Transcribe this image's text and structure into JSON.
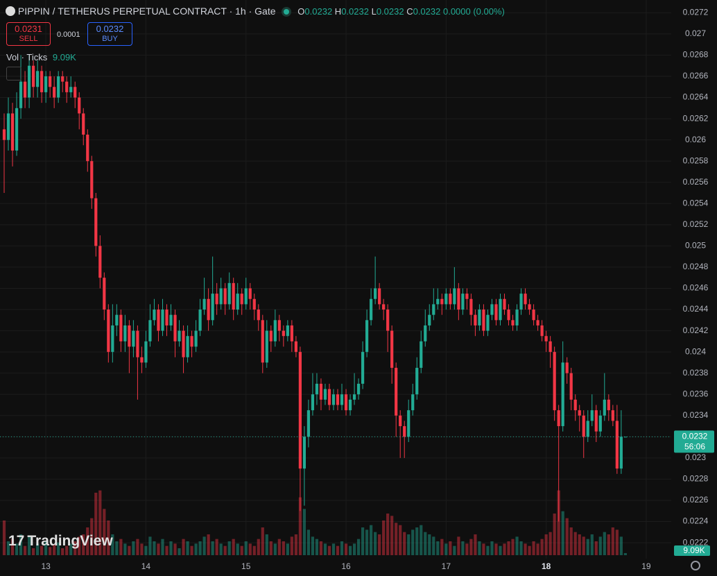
{
  "header": {
    "title": "PIPPIN / TETHERUS PERPETUAL CONTRACT · 1h · Gate",
    "o_label": "O",
    "o": "0.0232",
    "h_label": "H",
    "h": "0.0232",
    "l_label": "L",
    "l": "0.0232",
    "c_label": "C",
    "c": "0.0232",
    "change": "0.0000 (0.00%)",
    "sell_price": "0.0231",
    "sell": "SELL",
    "spread": "0.0001",
    "buy_price": "0.0232",
    "buy": "BUY",
    "volume_title": "Vol · Ticks",
    "countdown": "56:06",
    "brand": "TradingView"
  },
  "chart_data": {
    "type": "candlestick",
    "up_color": "#22ab94",
    "down_color": "#f23645",
    "grid": true,
    "ylim": [
      0.02205,
      0.02732
    ],
    "yticks": [
      0.0222,
      0.0224,
      0.0226,
      0.0228,
      0.023,
      0.0232,
      0.0234,
      0.0236,
      0.0238,
      0.024,
      0.0242,
      0.0244,
      0.0246,
      0.0248,
      0.025,
      0.0252,
      0.0254,
      0.0256,
      0.0258,
      0.026,
      0.0262,
      0.0264,
      0.0266,
      0.0268,
      0.027,
      0.0272
    ],
    "xlim": [
      -1,
      160
    ],
    "xticks": [
      {
        "value": 10,
        "label": "13"
      },
      {
        "value": 34,
        "label": "14"
      },
      {
        "value": 58,
        "label": "15"
      },
      {
        "value": 82,
        "label": "16"
      },
      {
        "value": 106,
        "label": "17"
      },
      {
        "value": 130,
        "label": "18"
      },
      {
        "value": 154,
        "label": "19"
      }
    ],
    "vlim": [
      0,
      300000
    ],
    "candles": [
      [
        0.0261,
        0.02625,
        0.0255,
        0.026
      ],
      [
        0.026,
        0.0264,
        0.0259,
        0.02625
      ],
      [
        0.02625,
        0.02635,
        0.02575,
        0.0259
      ],
      [
        0.0259,
        0.02645,
        0.02585,
        0.0263
      ],
      [
        0.0263,
        0.0268,
        0.0262,
        0.02655
      ],
      [
        0.02655,
        0.02665,
        0.0263,
        0.0264
      ],
      [
        0.0264,
        0.0268,
        0.0263,
        0.0267
      ],
      [
        0.0267,
        0.02675,
        0.0264,
        0.0265
      ],
      [
        0.0265,
        0.02675,
        0.0264,
        0.02665
      ],
      [
        0.02665,
        0.0267,
        0.02635,
        0.02645
      ],
      [
        0.02645,
        0.02665,
        0.02635,
        0.0266
      ],
      [
        0.0266,
        0.02665,
        0.0264,
        0.0265
      ],
      [
        0.0265,
        0.0266,
        0.0263,
        0.0264
      ],
      [
        0.0264,
        0.02665,
        0.02635,
        0.0266
      ],
      [
        0.0266,
        0.02665,
        0.02645,
        0.02655
      ],
      [
        0.02655,
        0.0266,
        0.02635,
        0.02645
      ],
      [
        0.02645,
        0.0266,
        0.0264,
        0.0265
      ],
      [
        0.0265,
        0.02655,
        0.0263,
        0.0264
      ],
      [
        0.0264,
        0.02645,
        0.0261,
        0.02625
      ],
      [
        0.02625,
        0.0263,
        0.02595,
        0.02605
      ],
      [
        0.02605,
        0.0261,
        0.0257,
        0.0258
      ],
      [
        0.0258,
        0.02585,
        0.02535,
        0.02545
      ],
      [
        0.02545,
        0.0255,
        0.0249,
        0.025
      ],
      [
        0.025,
        0.0251,
        0.0246,
        0.0247
      ],
      [
        0.0247,
        0.02475,
        0.0243,
        0.0244
      ],
      [
        0.0244,
        0.02445,
        0.0239,
        0.024
      ],
      [
        0.024,
        0.02445,
        0.0239,
        0.02425
      ],
      [
        0.02425,
        0.02445,
        0.02415,
        0.02435
      ],
      [
        0.02435,
        0.0244,
        0.024,
        0.0241
      ],
      [
        0.0241,
        0.02435,
        0.024,
        0.02425
      ],
      [
        0.02425,
        0.0243,
        0.0238,
        0.02405
      ],
      [
        0.02405,
        0.0243,
        0.02395,
        0.0242
      ],
      [
        0.0242,
        0.02425,
        0.02355,
        0.02395
      ],
      [
        0.02395,
        0.02405,
        0.0238,
        0.0239
      ],
      [
        0.0239,
        0.0242,
        0.02385,
        0.0241
      ],
      [
        0.0241,
        0.02445,
        0.02405,
        0.0243
      ],
      [
        0.0243,
        0.0245,
        0.02425,
        0.0244
      ],
      [
        0.0244,
        0.02445,
        0.0241,
        0.0242
      ],
      [
        0.0242,
        0.0245,
        0.02415,
        0.0244
      ],
      [
        0.0244,
        0.02445,
        0.02415,
        0.02425
      ],
      [
        0.02425,
        0.02445,
        0.0242,
        0.02435
      ],
      [
        0.02435,
        0.0244,
        0.02395,
        0.0241
      ],
      [
        0.0241,
        0.0243,
        0.02405,
        0.0242
      ],
      [
        0.0242,
        0.02425,
        0.0238,
        0.02395
      ],
      [
        0.02395,
        0.02425,
        0.0239,
        0.02415
      ],
      [
        0.02415,
        0.0242,
        0.02395,
        0.02405
      ],
      [
        0.02405,
        0.0243,
        0.024,
        0.0242
      ],
      [
        0.0242,
        0.0245,
        0.02415,
        0.0244
      ],
      [
        0.0244,
        0.0247,
        0.02435,
        0.0245
      ],
      [
        0.0245,
        0.0246,
        0.0242,
        0.0243
      ],
      [
        0.0243,
        0.0249,
        0.02425,
        0.02455
      ],
      [
        0.02455,
        0.02465,
        0.02435,
        0.02445
      ],
      [
        0.02445,
        0.0247,
        0.0244,
        0.0246
      ],
      [
        0.0246,
        0.02465,
        0.02435,
        0.02445
      ],
      [
        0.02445,
        0.02475,
        0.0244,
        0.02465
      ],
      [
        0.02465,
        0.0247,
        0.0243,
        0.0244
      ],
      [
        0.0244,
        0.02465,
        0.02435,
        0.02455
      ],
      [
        0.02455,
        0.0246,
        0.02435,
        0.02445
      ],
      [
        0.02445,
        0.0247,
        0.0244,
        0.0246
      ],
      [
        0.0246,
        0.02465,
        0.0244,
        0.0245
      ],
      [
        0.0245,
        0.02455,
        0.0243,
        0.0244
      ],
      [
        0.0244,
        0.02445,
        0.0242,
        0.0243
      ],
      [
        0.0243,
        0.02435,
        0.0238,
        0.0239
      ],
      [
        0.0239,
        0.0243,
        0.02385,
        0.0242
      ],
      [
        0.0242,
        0.02425,
        0.024,
        0.0241
      ],
      [
        0.0241,
        0.0244,
        0.02405,
        0.0243
      ],
      [
        0.0243,
        0.02435,
        0.0241,
        0.0242
      ],
      [
        0.0242,
        0.02425,
        0.02405,
        0.02415
      ],
      [
        0.02415,
        0.0243,
        0.0241,
        0.02425
      ],
      [
        0.02425,
        0.0243,
        0.024,
        0.0241
      ],
      [
        0.0241,
        0.02415,
        0.02395,
        0.024
      ],
      [
        0.024,
        0.02405,
        0.0225,
        0.0229
      ],
      [
        0.0229,
        0.0233,
        0.02255,
        0.0232
      ],
      [
        0.0232,
        0.02355,
        0.0231,
        0.02345
      ],
      [
        0.02345,
        0.0238,
        0.0234,
        0.0236
      ],
      [
        0.0236,
        0.0238,
        0.0235,
        0.0237
      ],
      [
        0.0237,
        0.02375,
        0.02345,
        0.02355
      ],
      [
        0.02355,
        0.0237,
        0.0235,
        0.02365
      ],
      [
        0.02365,
        0.0237,
        0.02345,
        0.0235
      ],
      [
        0.0235,
        0.02365,
        0.02345,
        0.0236
      ],
      [
        0.0236,
        0.02365,
        0.02345,
        0.0235
      ],
      [
        0.0235,
        0.0237,
        0.02345,
        0.0236
      ],
      [
        0.0236,
        0.02365,
        0.0234,
        0.02345
      ],
      [
        0.02345,
        0.0236,
        0.0234,
        0.02355
      ],
      [
        0.02355,
        0.0238,
        0.0235,
        0.0236
      ],
      [
        0.0236,
        0.02375,
        0.02355,
        0.0237
      ],
      [
        0.0237,
        0.0241,
        0.02365,
        0.024
      ],
      [
        0.024,
        0.0244,
        0.02395,
        0.0243
      ],
      [
        0.0243,
        0.0246,
        0.02425,
        0.0245
      ],
      [
        0.0245,
        0.0249,
        0.02445,
        0.0246
      ],
      [
        0.0246,
        0.02465,
        0.0244,
        0.02445
      ],
      [
        0.02445,
        0.0245,
        0.0243,
        0.0244
      ],
      [
        0.0244,
        0.02445,
        0.024,
        0.0242
      ],
      [
        0.0242,
        0.02425,
        0.0237,
        0.02385
      ],
      [
        0.02385,
        0.0239,
        0.0232,
        0.0234
      ],
      [
        0.0234,
        0.02345,
        0.023,
        0.0233
      ],
      [
        0.0233,
        0.02335,
        0.023,
        0.0232
      ],
      [
        0.0232,
        0.02355,
        0.02315,
        0.02345
      ],
      [
        0.02345,
        0.0237,
        0.0234,
        0.0236
      ],
      [
        0.0236,
        0.02395,
        0.02355,
        0.02385
      ],
      [
        0.02385,
        0.0242,
        0.0238,
        0.0241
      ],
      [
        0.0241,
        0.0244,
        0.02405,
        0.02425
      ],
      [
        0.02425,
        0.02445,
        0.0242,
        0.02435
      ],
      [
        0.02435,
        0.0246,
        0.0243,
        0.02445
      ],
      [
        0.02445,
        0.0246,
        0.0244,
        0.0245
      ],
      [
        0.0245,
        0.02455,
        0.02435,
        0.02445
      ],
      [
        0.02445,
        0.0246,
        0.0244,
        0.02455
      ],
      [
        0.02455,
        0.0246,
        0.0244,
        0.02445
      ],
      [
        0.02445,
        0.0248,
        0.0244,
        0.0246
      ],
      [
        0.0246,
        0.02465,
        0.0243,
        0.0244
      ],
      [
        0.0244,
        0.0246,
        0.02435,
        0.02455
      ],
      [
        0.02455,
        0.0246,
        0.0244,
        0.0245
      ],
      [
        0.0245,
        0.02455,
        0.02425,
        0.02435
      ],
      [
        0.02435,
        0.0244,
        0.02415,
        0.02425
      ],
      [
        0.02425,
        0.02445,
        0.0242,
        0.0244
      ],
      [
        0.0244,
        0.02445,
        0.02415,
        0.0242
      ],
      [
        0.0242,
        0.0244,
        0.02415,
        0.02435
      ],
      [
        0.02435,
        0.0245,
        0.0243,
        0.02445
      ],
      [
        0.02445,
        0.0245,
        0.02425,
        0.0243
      ],
      [
        0.0243,
        0.02455,
        0.02425,
        0.0245
      ],
      [
        0.0245,
        0.02455,
        0.02435,
        0.0244
      ],
      [
        0.0244,
        0.02445,
        0.02425,
        0.0243
      ],
      [
        0.0243,
        0.02435,
        0.0242,
        0.02425
      ],
      [
        0.02425,
        0.02445,
        0.0242,
        0.0244
      ],
      [
        0.0244,
        0.0246,
        0.02435,
        0.02455
      ],
      [
        0.02455,
        0.0246,
        0.0244,
        0.02445
      ],
      [
        0.02445,
        0.0245,
        0.02435,
        0.0244
      ],
      [
        0.0244,
        0.02445,
        0.02425,
        0.0243
      ],
      [
        0.0243,
        0.02435,
        0.0242,
        0.02425
      ],
      [
        0.02425,
        0.0243,
        0.0241,
        0.02415
      ],
      [
        0.02415,
        0.0242,
        0.024,
        0.0241
      ],
      [
        0.0241,
        0.02415,
        0.02385,
        0.024
      ],
      [
        0.024,
        0.02405,
        0.02335,
        0.02345
      ],
      [
        0.02345,
        0.0235,
        0.0224,
        0.0233
      ],
      [
        0.0233,
        0.0241,
        0.02325,
        0.0239
      ],
      [
        0.0239,
        0.02395,
        0.0237,
        0.0238
      ],
      [
        0.0238,
        0.02385,
        0.02345,
        0.02355
      ],
      [
        0.02355,
        0.0236,
        0.02335,
        0.02345
      ],
      [
        0.02345,
        0.0235,
        0.02325,
        0.0234
      ],
      [
        0.0234,
        0.02345,
        0.023,
        0.0232
      ],
      [
        0.0232,
        0.02345,
        0.02315,
        0.02335
      ],
      [
        0.02335,
        0.0236,
        0.0233,
        0.02345
      ],
      [
        0.02345,
        0.0235,
        0.02315,
        0.02325
      ],
      [
        0.02325,
        0.02345,
        0.0232,
        0.0234
      ],
      [
        0.0234,
        0.0238,
        0.02335,
        0.02355
      ],
      [
        0.02355,
        0.0236,
        0.02335,
        0.02345
      ],
      [
        0.02345,
        0.0235,
        0.0233,
        0.02335
      ],
      [
        0.02335,
        0.0235,
        0.02285,
        0.0229
      ],
      [
        0.0229,
        0.02345,
        0.02285,
        0.0232
      ],
      [
        0.0232,
        0.0232,
        0.0232,
        0.0232
      ]
    ],
    "volumes": [
      150000,
      60000,
      70000,
      50000,
      90000,
      40000,
      80000,
      30000,
      50000,
      40000,
      60000,
      35000,
      45000,
      55000,
      30000,
      40000,
      50000,
      60000,
      80000,
      90000,
      120000,
      160000,
      270000,
      280000,
      200000,
      150000,
      90000,
      60000,
      70000,
      50000,
      40000,
      60000,
      70000,
      50000,
      40000,
      80000,
      60000,
      50000,
      70000,
      40000,
      60000,
      50000,
      30000,
      70000,
      60000,
      40000,
      50000,
      60000,
      80000,
      90000,
      60000,
      70000,
      50000,
      40000,
      60000,
      70000,
      50000,
      40000,
      60000,
      50000,
      40000,
      70000,
      120000,
      90000,
      60000,
      50000,
      70000,
      60000,
      50000,
      80000,
      90000,
      250000,
      200000,
      110000,
      80000,
      70000,
      60000,
      50000,
      40000,
      50000,
      40000,
      60000,
      50000,
      40000,
      50000,
      70000,
      120000,
      110000,
      130000,
      100000,
      90000,
      150000,
      180000,
      170000,
      140000,
      130000,
      100000,
      90000,
      110000,
      120000,
      130000,
      100000,
      90000,
      80000,
      60000,
      70000,
      50000,
      60000,
      40000,
      80000,
      60000,
      50000,
      70000,
      90000,
      60000,
      50000,
      40000,
      60000,
      50000,
      40000,
      50000,
      60000,
      70000,
      80000,
      60000,
      50000,
      40000,
      60000,
      50000,
      70000,
      90000,
      100000,
      180000,
      280000,
      190000,
      160000,
      120000,
      100000,
      90000,
      80000,
      70000,
      90000,
      60000,
      80000,
      100000,
      90000,
      120000,
      110000,
      80000,
      9090
    ],
    "volume_value_labels": {
      "149": "9.09K"
    }
  }
}
